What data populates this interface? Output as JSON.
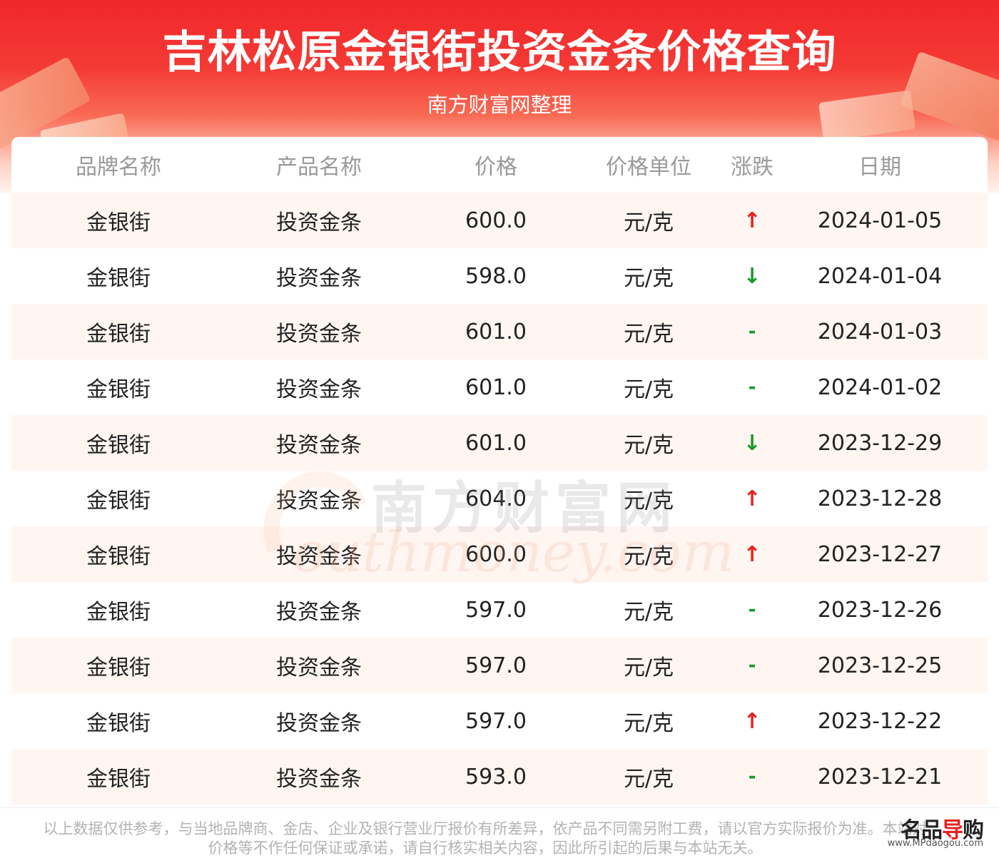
{
  "header": {
    "title": "吉林松原金银街投资金条价格查询",
    "subtitle": "南方财富网整理"
  },
  "table": {
    "columns": [
      "品牌名称",
      "产品名称",
      "价格",
      "价格单位",
      "涨跌",
      "日期"
    ],
    "rows": [
      {
        "brand": "金银街",
        "product": "投资金条",
        "price": "600.0",
        "unit": "元/克",
        "trend": "↑",
        "trend_type": "up",
        "date": "2024-01-05"
      },
      {
        "brand": "金银街",
        "product": "投资金条",
        "price": "598.0",
        "unit": "元/克",
        "trend": "↓",
        "trend_type": "down",
        "date": "2024-01-04"
      },
      {
        "brand": "金银街",
        "product": "投资金条",
        "price": "601.0",
        "unit": "元/克",
        "trend": "-",
        "trend_type": "flat",
        "date": "2024-01-03"
      },
      {
        "brand": "金银街",
        "product": "投资金条",
        "price": "601.0",
        "unit": "元/克",
        "trend": "-",
        "trend_type": "flat",
        "date": "2024-01-02"
      },
      {
        "brand": "金银街",
        "product": "投资金条",
        "price": "601.0",
        "unit": "元/克",
        "trend": "↓",
        "trend_type": "down",
        "date": "2023-12-29"
      },
      {
        "brand": "金银街",
        "product": "投资金条",
        "price": "604.0",
        "unit": "元/克",
        "trend": "↑",
        "trend_type": "up",
        "date": "2023-12-28"
      },
      {
        "brand": "金银街",
        "product": "投资金条",
        "price": "600.0",
        "unit": "元/克",
        "trend": "↑",
        "trend_type": "up",
        "date": "2023-12-27"
      },
      {
        "brand": "金银街",
        "product": "投资金条",
        "price": "597.0",
        "unit": "元/克",
        "trend": "-",
        "trend_type": "flat",
        "date": "2023-12-26"
      },
      {
        "brand": "金银街",
        "product": "投资金条",
        "price": "597.0",
        "unit": "元/克",
        "trend": "-",
        "trend_type": "flat",
        "date": "2023-12-25"
      },
      {
        "brand": "金银街",
        "product": "投资金条",
        "price": "597.0",
        "unit": "元/克",
        "trend": "↑",
        "trend_type": "up",
        "date": "2023-12-22"
      },
      {
        "brand": "金银街",
        "product": "投资金条",
        "price": "593.0",
        "unit": "元/克",
        "trend": "-",
        "trend_type": "flat",
        "date": "2023-12-21"
      }
    ]
  },
  "watermark": {
    "cn": "南方财富网",
    "en": "outhmoney.com"
  },
  "footer": {
    "disclaimer": "以上数据仅供参考，与当地品牌商、金店、企业及银行营业厅报价有所差异，依产品不同需另附工费，请以官方实际报价为准。本站对价格等不作任何保证或承诺，请自行核实相关内容，因此所引起的后果与本站无关。"
  },
  "logo": {
    "name_part1": "名品",
    "name_part2": "导",
    "name_part3": "购",
    "url": "www.MPdaogou.com"
  },
  "colors": {
    "brand_red": "#f0272a",
    "up": "#e8201f",
    "down": "#1a9a2a",
    "row_alt": "#fff6f2"
  }
}
